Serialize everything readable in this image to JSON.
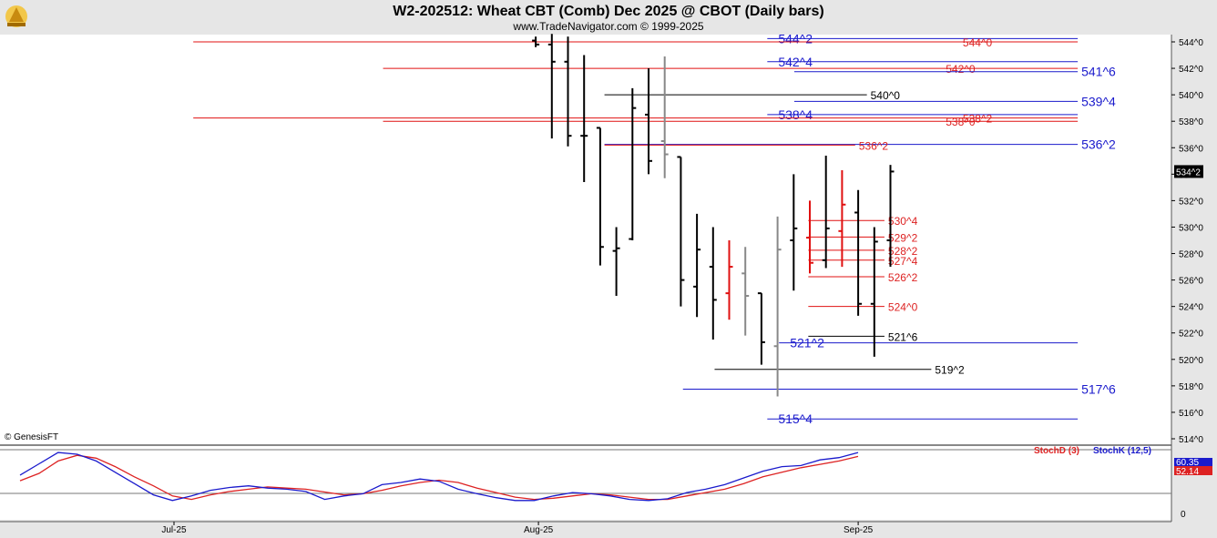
{
  "chart_data": {
    "type": "ohlc",
    "title": "W2-202512:  Wheat CBT (Comb) Dec 2025 @ CBOT  (Daily bars)",
    "subtitle": "www.TradeNavigator.com © 1999-2025",
    "copyright": "© GenesisFT",
    "last_price_label": "534^2",
    "price_axis": {
      "min": 514,
      "max": 544.5,
      "ticks": [
        "544^0",
        "542^0",
        "540^0",
        "538^0",
        "536^0",
        "534^0",
        "532^0",
        "530^0",
        "528^0",
        "526^0",
        "524^0",
        "522^0",
        "520^0",
        "518^0",
        "516^0",
        "514^0"
      ],
      "tick_values": [
        544,
        542,
        540,
        538,
        536,
        534,
        532,
        530,
        528,
        526,
        524,
        522,
        520,
        518,
        516,
        514
      ]
    },
    "date_axis": {
      "labels": [
        {
          "text": "Jul-25",
          "bar": 0
        },
        {
          "text": "Aug-25",
          "bar": 23
        },
        {
          "text": "Sep-25",
          "bar": 43
        }
      ]
    },
    "bars": [
      {
        "i": 23,
        "o": 544.1,
        "h": 544.4,
        "l": 543.6,
        "c": 543.8,
        "color": "black"
      },
      {
        "i": 24,
        "o": 543.8,
        "h": 544.6,
        "l": 536.7,
        "c": 542.5,
        "color": "black"
      },
      {
        "i": 25,
        "o": 542.5,
        "h": 544.4,
        "l": 536.1,
        "c": 536.9,
        "color": "black"
      },
      {
        "i": 26,
        "o": 536.9,
        "h": 543.0,
        "l": 533.4,
        "c": 536.9,
        "color": "black"
      },
      {
        "i": 27,
        "o": 537.5,
        "h": 537.5,
        "l": 527.1,
        "c": 528.5,
        "color": "black"
      },
      {
        "i": 28,
        "o": 528.2,
        "h": 530.0,
        "l": 524.8,
        "c": 528.4,
        "color": "black"
      },
      {
        "i": 29,
        "o": 529.1,
        "h": 540.5,
        "l": 529.0,
        "c": 539.0,
        "color": "black"
      },
      {
        "i": 30,
        "o": 538.5,
        "h": 542.0,
        "l": 534.0,
        "c": 535.0,
        "color": "black"
      },
      {
        "i": 31,
        "o": 536.5,
        "h": 542.9,
        "l": 533.7,
        "c": 535.5,
        "color": "gray"
      },
      {
        "i": 32,
        "o": 535.3,
        "h": 535.3,
        "l": 524.0,
        "c": 526.0,
        "color": "black"
      },
      {
        "i": 33,
        "o": 525.5,
        "h": 531.0,
        "l": 523.2,
        "c": 528.3,
        "color": "black"
      },
      {
        "i": 34,
        "o": 527.0,
        "h": 530.0,
        "l": 521.5,
        "c": 524.5,
        "color": "black"
      },
      {
        "i": 35,
        "o": 525.0,
        "h": 529.0,
        "l": 523.0,
        "c": 527.0,
        "color": "red"
      },
      {
        "i": 36,
        "o": 526.5,
        "h": 528.5,
        "l": 521.8,
        "c": 524.8,
        "color": "gray"
      },
      {
        "i": 37,
        "o": 525.0,
        "h": 525.0,
        "l": 519.6,
        "c": 521.3,
        "color": "black"
      },
      {
        "i": 38,
        "o": 521.0,
        "h": 530.8,
        "l": 517.2,
        "c": 528.3,
        "color": "gray"
      },
      {
        "i": 39,
        "o": 529.0,
        "h": 534.0,
        "l": 525.2,
        "c": 529.9,
        "color": "black"
      },
      {
        "i": 40,
        "o": 529.2,
        "h": 532.0,
        "l": 526.5,
        "c": 527.3,
        "color": "red"
      },
      {
        "i": 41,
        "o": 527.5,
        "h": 535.4,
        "l": 526.9,
        "c": 529.9,
        "color": "black"
      },
      {
        "i": 42,
        "o": 529.7,
        "h": 534.3,
        "l": 527.0,
        "c": 531.7,
        "color": "red"
      },
      {
        "i": 43,
        "o": 531.1,
        "h": 532.8,
        "l": 523.3,
        "c": 524.2,
        "color": "black"
      },
      {
        "i": 44,
        "o": 524.2,
        "h": 530.0,
        "l": 520.2,
        "c": 528.9,
        "color": "black"
      },
      {
        "i": 45,
        "o": 529.0,
        "h": 534.7,
        "l": 527.0,
        "c": 534.2,
        "color": "black"
      }
    ],
    "levels": [
      {
        "label": "544^2",
        "value": 544.25,
        "color": "blue",
        "x1": 0.655,
        "x2": 0.92,
        "label_pos": "left"
      },
      {
        "label": "544^0",
        "value": 544.0,
        "color": "red",
        "x1": 0.165,
        "x2": 0.92,
        "label_pos": "right-mid"
      },
      {
        "label": "542^4",
        "value": 542.5,
        "color": "blue",
        "x1": 0.655,
        "x2": 0.92,
        "label_pos": "left"
      },
      {
        "label": "542^0",
        "value": 542.0,
        "color": "red",
        "x1": 0.327,
        "x2": 0.92,
        "label_pos": "right-mid"
      },
      {
        "label": "541^6",
        "value": 541.75,
        "color": "blue",
        "x1": 0.678,
        "x2": 0.92,
        "label_pos": "right"
      },
      {
        "label": "540^0",
        "value": 540.0,
        "color": "black",
        "x1": 0.516,
        "x2": 0.74,
        "label_pos": "right"
      },
      {
        "label": "539^4",
        "value": 539.5,
        "color": "blue",
        "x1": 0.678,
        "x2": 0.92,
        "label_pos": "right"
      },
      {
        "label": "538^4",
        "value": 538.5,
        "color": "blue",
        "x1": 0.655,
        "x2": 0.92,
        "label_pos": "left"
      },
      {
        "label": "538^2",
        "value": 538.25,
        "color": "red",
        "x1": 0.165,
        "x2": 0.92,
        "label_pos": "right-mid"
      },
      {
        "label": "538^0",
        "value": 538.0,
        "color": "red",
        "x1": 0.327,
        "x2": 0.92,
        "label_pos": "right-mid"
      },
      {
        "label": "536^2",
        "value": 536.25,
        "color": "blue",
        "x1": 0.516,
        "x2": 0.92,
        "label_pos": "right"
      },
      {
        "label": "536^2",
        "value": 536.2,
        "color": "red",
        "x1": 0.516,
        "x2": 0.73,
        "label_pos": "right"
      },
      {
        "label": "530^4",
        "value": 530.5,
        "color": "red",
        "x1": 0.69,
        "x2": 0.755,
        "label_pos": "right"
      },
      {
        "label": "529^2",
        "value": 529.25,
        "color": "red",
        "x1": 0.69,
        "x2": 0.755,
        "label_pos": "right"
      },
      {
        "label": "528^2",
        "value": 528.25,
        "color": "red",
        "x1": 0.69,
        "x2": 0.755,
        "label_pos": "right"
      },
      {
        "label": "527^4",
        "value": 527.5,
        "color": "red",
        "x1": 0.69,
        "x2": 0.755,
        "label_pos": "right"
      },
      {
        "label": "526^2",
        "value": 526.25,
        "color": "red",
        "x1": 0.69,
        "x2": 0.755,
        "label_pos": "right"
      },
      {
        "label": "524^0",
        "value": 524.0,
        "color": "red",
        "x1": 0.69,
        "x2": 0.755,
        "label_pos": "right"
      },
      {
        "label": "521^6",
        "value": 521.75,
        "color": "black",
        "x1": 0.69,
        "x2": 0.755,
        "label_pos": "right"
      },
      {
        "label": "521^2",
        "value": 521.25,
        "color": "blue",
        "x1": 0.665,
        "x2": 0.92,
        "label_pos": "left"
      },
      {
        "label": "519^2",
        "value": 519.25,
        "color": "black",
        "x1": 0.61,
        "x2": 0.795,
        "label_pos": "right"
      },
      {
        "label": "517^6",
        "value": 517.75,
        "color": "blue",
        "x1": 0.583,
        "x2": 0.92,
        "label_pos": "right"
      },
      {
        "label": "515^4",
        "value": 515.5,
        "color": "blue",
        "x1": 0.655,
        "x2": 0.92,
        "label_pos": "left"
      }
    ],
    "oscillator": {
      "legend": [
        {
          "name": "StochD (3)",
          "color": "red"
        },
        {
          "name": "StochK (12,5)",
          "color": "blue"
        }
      ],
      "axis_tick": "0",
      "value_labels": [
        "60.35",
        "52.14"
      ],
      "stochK": [
        55,
        75,
        95,
        92,
        80,
        60,
        40,
        20,
        10,
        18,
        28,
        33,
        36,
        32,
        30,
        26,
        12,
        18,
        22,
        38,
        42,
        48,
        44,
        30,
        22,
        15,
        10,
        10,
        18,
        24,
        22,
        18,
        12,
        10,
        13,
        24,
        30,
        38,
        50,
        62,
        70,
        72,
        82,
        86,
        95
      ],
      "stochD": [
        45,
        58,
        80,
        90,
        85,
        70,
        52,
        36,
        18,
        12,
        20,
        26,
        30,
        34,
        32,
        30,
        25,
        20,
        22,
        28,
        36,
        42,
        46,
        42,
        32,
        24,
        16,
        12,
        14,
        18,
        22,
        20,
        16,
        12,
        12,
        18,
        24,
        30,
        40,
        52,
        60,
        68,
        74,
        80,
        88
      ]
    }
  }
}
